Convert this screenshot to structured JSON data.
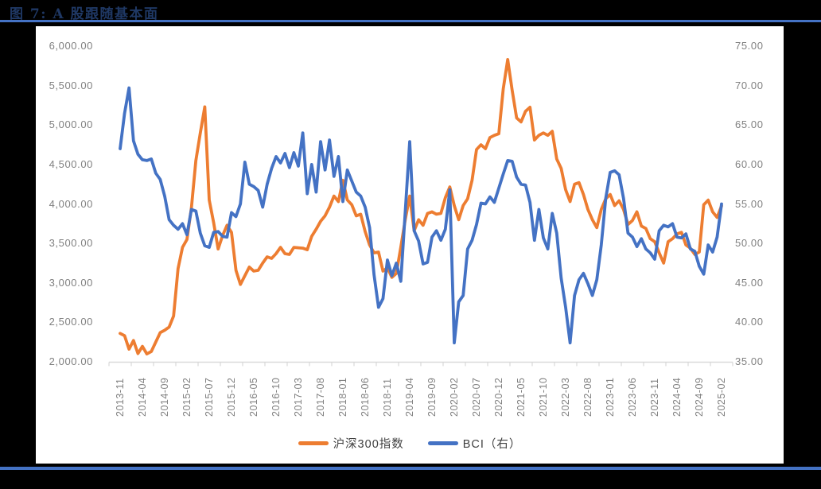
{
  "header": {
    "title": "图 7:  A 股跟随基本面"
  },
  "colors": {
    "page_bg": "#000000",
    "panel_bg": "#ffffff",
    "title_text": "#1f3864",
    "rule_blue": "#4472c4",
    "csi300_orange": "#ed7d31",
    "bci_blue": "#4472c4",
    "axis_text": "#808080",
    "axis_line": "#d9d9d9"
  },
  "legend": {
    "items": [
      {
        "label": "沪深300指数",
        "color": "#ed7d31"
      },
      {
        "label": "BCI（右）",
        "color": "#4472c4"
      }
    ]
  },
  "chart_data": {
    "type": "line",
    "title": "图 7: A 股跟随基本面",
    "grid": false,
    "legend_position": "bottom",
    "x_start": "2013-11",
    "x_end": "2025-02",
    "x_frequency": "monthly",
    "x_tick_labels": [
      "2013-11",
      "2014-04",
      "2014-09",
      "2015-02",
      "2015-07",
      "2015-12",
      "2016-05",
      "2016-10",
      "2017-03",
      "2017-08",
      "2018-01",
      "2018-06",
      "2018-11",
      "2019-04",
      "2019-09",
      "2020-02",
      "2020-07",
      "2020-12",
      "2021-05",
      "2021-10",
      "2022-03",
      "2022-08",
      "2023-01",
      "2023-06",
      "2023-11",
      "2024-04",
      "2024-09",
      "2025-02"
    ],
    "y_left_axis": {
      "min": 2000,
      "max": 6000,
      "step": 500,
      "tick_labels": [
        "6,000.00",
        "5,500.00",
        "5,000.00",
        "4,500.00",
        "4,000.00",
        "3,500.00",
        "3,000.00",
        "2,500.00",
        "2,000.00"
      ]
    },
    "y_right_axis": {
      "min": 35,
      "max": 75,
      "step": 5,
      "tick_labels": [
        "75.00",
        "70.00",
        "65.00",
        "60.00",
        "55.00",
        "50.00",
        "45.00",
        "40.00",
        "35.00"
      ]
    },
    "series": [
      {
        "name": "沪深300指数",
        "axis": "left",
        "color": "#ed7d31",
        "values": [
          2360,
          2330,
          2160,
          2270,
          2105,
          2195,
          2100,
          2130,
          2250,
          2370,
          2400,
          2440,
          2580,
          3180,
          3450,
          3550,
          3950,
          4550,
          4900,
          5230,
          4050,
          3760,
          3430,
          3600,
          3730,
          3640,
          3160,
          2980,
          3090,
          3200,
          3150,
          3160,
          3250,
          3330,
          3310,
          3370,
          3450,
          3370,
          3360,
          3450,
          3445,
          3440,
          3420,
          3590,
          3680,
          3780,
          3850,
          3960,
          4100,
          4030,
          4300,
          4050,
          3990,
          3850,
          3870,
          3650,
          3480,
          3380,
          3390,
          3150,
          3190,
          3070,
          3120,
          3450,
          3800,
          4100,
          3660,
          3800,
          3730,
          3880,
          3900,
          3870,
          3880,
          4080,
          4216,
          3980,
          3800,
          3980,
          4065,
          4300,
          4690,
          4750,
          4700,
          4840,
          4870,
          4890,
          5460,
          5830,
          5440,
          5090,
          5040,
          5175,
          5225,
          4810,
          4870,
          4900,
          4870,
          4920,
          4570,
          4450,
          4180,
          4030,
          4250,
          4270,
          4120,
          3930,
          3800,
          3700,
          3930,
          4065,
          4120,
          3980,
          4040,
          3930,
          3740,
          3790,
          3900,
          3720,
          3690,
          3560,
          3520,
          3380,
          3250,
          3520,
          3560,
          3620,
          3640,
          3480,
          3440,
          3360,
          3390,
          3990,
          4048,
          3900,
          3830,
          3975
        ]
      },
      {
        "name": "BCI（右）",
        "axis": "right",
        "color": "#4472c4",
        "values": [
          62.0,
          66.5,
          69.7,
          63.0,
          61.3,
          60.6,
          60.5,
          60.7,
          58.9,
          58.1,
          56.0,
          53.0,
          52.3,
          51.8,
          52.5,
          51.1,
          54.3,
          54.1,
          51.3,
          49.7,
          49.5,
          51.4,
          51.5,
          50.9,
          50.8,
          53.9,
          53.4,
          55.0,
          60.3,
          57.5,
          57.2,
          56.7,
          54.6,
          57.5,
          59.5,
          61.0,
          60.2,
          61.4,
          59.6,
          61.5,
          59.8,
          64.0,
          56.3,
          60.0,
          56.5,
          62.9,
          59.3,
          63.1,
          58.5,
          61.0,
          55.3,
          59.3,
          57.9,
          56.5,
          56.0,
          54.6,
          52.0,
          46.0,
          41.9,
          43.0,
          47.9,
          45.9,
          47.5,
          45.2,
          54.0,
          62.9,
          51.6,
          50.3,
          47.4,
          47.6,
          50.8,
          51.6,
          50.4,
          51.8,
          56.8,
          37.4,
          42.6,
          43.4,
          49.3,
          50.4,
          52.4,
          55.1,
          55.0,
          55.9,
          55.2,
          57.0,
          58.8,
          60.5,
          60.4,
          58.4,
          57.5,
          57.4,
          55.2,
          50.4,
          54.3,
          50.7,
          49.3,
          53.8,
          51.3,
          45.6,
          41.9,
          37.4,
          43.4,
          45.4,
          46.2,
          44.9,
          43.4,
          45.4,
          49.8,
          55.7,
          59.0,
          59.2,
          58.7,
          55.7,
          51.3,
          50.8,
          49.6,
          50.6,
          49.3,
          48.8,
          48.0,
          51.6,
          52.3,
          52.1,
          52.5,
          50.8,
          50.7,
          51.2,
          49.3,
          49.0,
          47.1,
          46.1,
          49.8,
          48.9,
          50.8,
          55.0
        ]
      }
    ]
  }
}
